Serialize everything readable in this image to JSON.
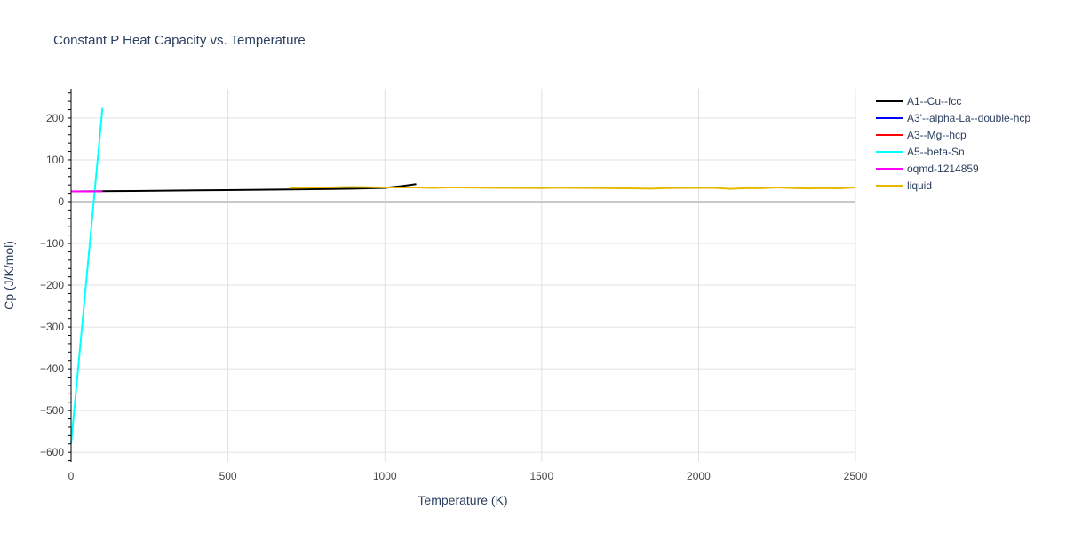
{
  "chart_data": {
    "type": "line",
    "title": "Constant P Heat Capacity vs. Temperature",
    "xlabel": "Temperature (K)",
    "ylabel": "Cp (J/K/mol)",
    "xlim": [
      0,
      2500
    ],
    "ylim": [
      -623,
      270
    ],
    "xticks": [
      0,
      500,
      1000,
      1500,
      2000,
      2500
    ],
    "yticks": [
      -600,
      -500,
      -400,
      -300,
      -200,
      -100,
      0,
      100,
      200
    ],
    "xtick_labels": [
      "0",
      "500",
      "1000",
      "1500",
      "2000",
      "2500"
    ],
    "ytick_labels": [
      "−600",
      "−500",
      "−400",
      "−300",
      "−200",
      "−100",
      "0",
      "100",
      "200"
    ],
    "grid": true,
    "legend_position": "top-right",
    "series": [
      {
        "name": "A1--Cu--fcc",
        "color": "#000000",
        "x": [
          0,
          200,
          400,
          600,
          800,
          900,
          1000,
          1050,
          1100
        ],
        "y": [
          24.5,
          25.5,
          27,
          28.5,
          30,
          31,
          33,
          37,
          42
        ]
      },
      {
        "name": "A3'--alpha-La--double-hcp",
        "color": "#0000ff",
        "x": [],
        "y": []
      },
      {
        "name": "A3--Mg--hcp",
        "color": "#ff0000",
        "x": [],
        "y": []
      },
      {
        "name": "A5--beta-Sn",
        "color": "#00ffff",
        "x": [
          0,
          100
        ],
        "y": [
          -580,
          224
        ]
      },
      {
        "name": "oqmd-1214859",
        "color": "#ff00ff",
        "x": [
          0,
          100
        ],
        "y": [
          24.5,
          24.5
        ]
      },
      {
        "name": "liquid",
        "color": "#e6b800",
        "x": [
          700,
          800,
          900,
          1000,
          1100,
          1150,
          1200,
          1300,
          1400,
          1500,
          1550,
          1600,
          1700,
          1800,
          1850,
          1900,
          2000,
          2050,
          2100,
          2150,
          2200,
          2250,
          2300,
          2350,
          2400,
          2450,
          2500
        ],
        "y": [
          33,
          34,
          35,
          34,
          34,
          33,
          34,
          33.5,
          33,
          32.5,
          33.5,
          33,
          32.5,
          31.5,
          31,
          32.5,
          33,
          33,
          30.5,
          32,
          32,
          34,
          32.5,
          31.5,
          32.5,
          32,
          34
        ]
      }
    ]
  }
}
